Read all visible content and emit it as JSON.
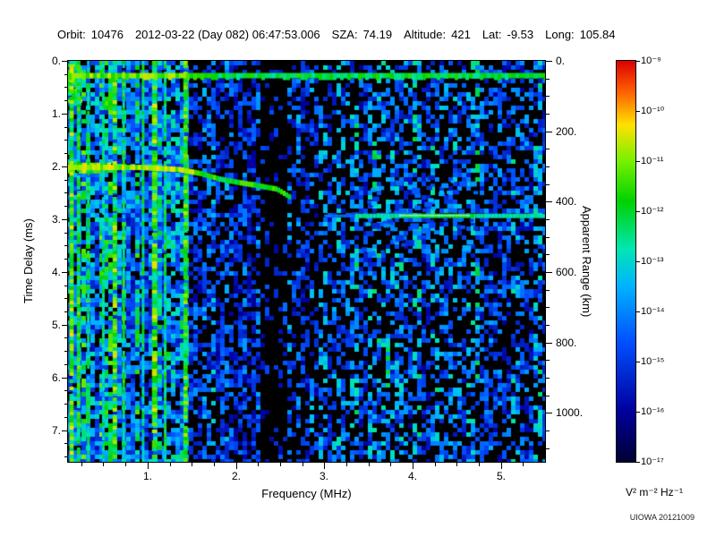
{
  "header": {
    "items": [
      {
        "label": "Orbit:",
        "value": "10476"
      },
      {
        "label": "",
        "value": "2012-03-22 (Day 082) 06:47:53.006"
      },
      {
        "label": "SZA:",
        "value": "74.19"
      },
      {
        "label": "Altitude:",
        "value": "421"
      },
      {
        "label": "Lat:",
        "value": "-9.53"
      },
      {
        "label": "Long:",
        "value": "105.84"
      }
    ]
  },
  "axes": {
    "x_label": "Frequency (MHz)",
    "x_tick_labels": [
      "1.",
      "2.",
      "3.",
      "4.",
      "5."
    ],
    "x_tick_values": [
      1,
      2,
      3,
      4,
      5
    ],
    "x_minor_step": 0.25,
    "y_left_label": "Time Delay (ms)",
    "y_left_tick_labels": [
      "0.",
      "1.",
      "2.",
      "3.",
      "4.",
      "5.",
      "6.",
      "7."
    ],
    "y_left_tick_values": [
      0,
      1,
      2,
      3,
      4,
      5,
      6,
      7
    ],
    "y_left_minor_step": 0.25,
    "y_right_label": "Apparent Range (km)",
    "y_right_tick_labels": [
      "0.",
      "200.",
      "400.",
      "600.",
      "800.",
      "1000."
    ],
    "y_right_tick_values_km": [
      0,
      200,
      400,
      600,
      800,
      1000
    ],
    "y_right_minor_step_km": 50,
    "ms_per_km": 0.006671
  },
  "colorbar": {
    "tick_labels": [
      "10⁻⁹",
      "10⁻¹⁰",
      "10⁻¹¹",
      "10⁻¹²",
      "10⁻¹³",
      "10⁻¹⁴",
      "10⁻¹⁵",
      "10⁻¹⁶",
      "10⁻¹⁷"
    ],
    "unit_label": "V² m⁻² Hz⁻¹",
    "colormap_stops": [
      [
        0,
        "#000032"
      ],
      [
        0.13,
        "#0000a0"
      ],
      [
        0.3,
        "#0050ff"
      ],
      [
        0.44,
        "#00b4ff"
      ],
      [
        0.53,
        "#00e6b4"
      ],
      [
        0.65,
        "#00d200"
      ],
      [
        0.75,
        "#78f000"
      ],
      [
        0.84,
        "#ffe100"
      ],
      [
        0.92,
        "#ff6400"
      ],
      [
        1,
        "#dc0000"
      ]
    ]
  },
  "credit": "UIOWA 20121009",
  "chart_data": {
    "type": "heatmap",
    "title": "",
    "x_label": "Frequency (MHz)",
    "y_label": "Time Delay (ms)",
    "y2_label": "Apparent Range (km)",
    "z_label": "V² m⁻² Hz⁻¹",
    "x_range_mhz": [
      0.1,
      5.5
    ],
    "y_range_ms": [
      0,
      7.6
    ],
    "y2_range_km": [
      0,
      1139
    ],
    "z_range": [
      "1e-17",
      "1e-9"
    ],
    "legend_position": "right-colorbar",
    "features": {
      "transmit_pulse": {
        "t_ms": 0.28
      },
      "noise_bands": [
        {
          "f0": 0.1,
          "f1": 1.45,
          "p": 0.78,
          "v0": 0.18,
          "v1": 0.62
        },
        {
          "f0": 1.45,
          "f1": 2.3,
          "p": 0.5,
          "v0": 0.14,
          "v1": 0.44
        },
        {
          "f0": 2.3,
          "f1": 2.58,
          "p": 0.12,
          "v0": 0.12,
          "v1": 0.3
        },
        {
          "f0": 2.58,
          "f1": 3.3,
          "p": 0.38,
          "v0": 0.14,
          "v1": 0.42
        },
        {
          "f0": 3.3,
          "f1": 5.5,
          "p": 0.46,
          "v0": 0.15,
          "v1": 0.5
        }
      ],
      "plasma_harmonic_stripes": [
        {
          "f": 0.14,
          "w": 0.05,
          "v": 0.72
        },
        {
          "f": 0.22,
          "w": 0.04,
          "v": 0.66
        },
        {
          "f": 0.33,
          "w": 0.03,
          "v": 0.58
        },
        {
          "f": 0.5,
          "w": 0.03,
          "v": 0.55
        },
        {
          "f": 0.63,
          "w": 0.05,
          "v": 0.7
        },
        {
          "f": 0.73,
          "w": 0.03,
          "v": 0.62
        },
        {
          "f": 0.95,
          "w": 0.03,
          "v": 0.58
        },
        {
          "f": 1.08,
          "w": 0.06,
          "v": 0.72
        },
        {
          "f": 1.2,
          "w": 0.03,
          "v": 0.6
        },
        {
          "f": 1.43,
          "w": 0.05,
          "v": 0.68
        }
      ],
      "ionosphere_trace": [
        [
          0.1,
          2.02
        ],
        [
          0.9,
          2.02
        ],
        [
          1.35,
          2.06
        ],
        [
          1.6,
          2.14
        ],
        [
          1.8,
          2.24
        ],
        [
          2.0,
          2.3
        ],
        [
          2.25,
          2.37
        ],
        [
          2.45,
          2.43
        ],
        [
          2.62,
          2.6
        ]
      ],
      "surface_reflection": {
        "t_ms": 2.93,
        "f_start_mhz": 3.35,
        "f_end_mhz": 5.5,
        "faint_f0_mhz": 3.0,
        "bright_f0": 3.85,
        "bright_f1": 4.65
      },
      "bright_patches": [
        {
          "f0": 0.1,
          "f1": 0.26,
          "t0": 0.05,
          "t1": 0.75,
          "v": 0.66
        },
        {
          "f0": 0.1,
          "f1": 0.55,
          "t0": 1.93,
          "t1": 2.12,
          "v": 0.74
        }
      ],
      "diffuse_cluster": {
        "f0": 3.3,
        "f1": 4.7,
        "t0": 2.15,
        "t1": 3.6,
        "count": 80,
        "v0": 0.2,
        "v1": 0.45
      }
    }
  }
}
